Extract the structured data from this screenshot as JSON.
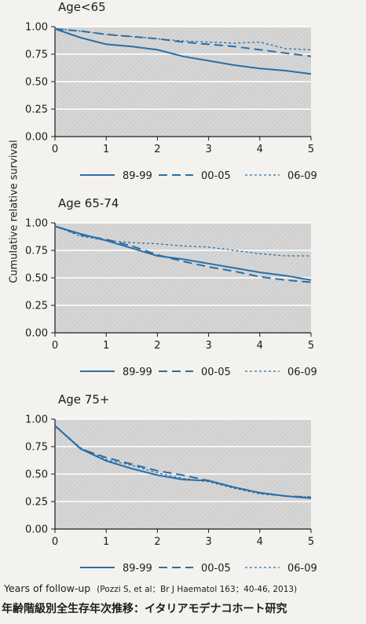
{
  "figure": {
    "ylabel": "Cumulative relative survival",
    "xlabel": "Years of follow-up",
    "citation": "(Pozzi S, et al：Br J Haematol 163：40-46, 2013)",
    "caption": "年齢階級別全生存年次推移：イタリアモデナコホート研究",
    "colors": {
      "line": "#2a6fa6",
      "plot_background": "#d6d6d6",
      "grid": "#ffffff"
    }
  },
  "chart_data": [
    {
      "type": "line",
      "title": "Age<65",
      "x": [
        0,
        0.5,
        1,
        1.5,
        2,
        2.5,
        3,
        3.5,
        4,
        4.5,
        5
      ],
      "xlim": [
        0,
        5
      ],
      "ylim": [
        0,
        1
      ],
      "xticks": [
        "0",
        "1",
        "2",
        "3",
        "4",
        "5"
      ],
      "yticks": [
        "0.00",
        "0.25",
        "0.50",
        "0.75",
        "1.00"
      ],
      "series": [
        {
          "name": "89-99",
          "style": "solid",
          "values": [
            0.98,
            0.9,
            0.84,
            0.82,
            0.79,
            0.73,
            0.69,
            0.65,
            0.62,
            0.6,
            0.57
          ]
        },
        {
          "name": "00-05",
          "style": "dashed",
          "values": [
            0.98,
            0.96,
            0.93,
            0.91,
            0.89,
            0.86,
            0.84,
            0.82,
            0.79,
            0.76,
            0.73
          ]
        },
        {
          "name": "06-09",
          "style": "dotted",
          "values": [
            0.98,
            0.96,
            0.93,
            0.91,
            0.89,
            0.87,
            0.86,
            0.85,
            0.86,
            0.8,
            0.79
          ]
        }
      ],
      "legend": {
        "position": "bottom",
        "labels": [
          "89-99",
          "00-05",
          "06-09"
        ]
      },
      "grid": true
    },
    {
      "type": "line",
      "title": "Age 65-74",
      "x": [
        0,
        0.5,
        1,
        1.5,
        2,
        2.5,
        3,
        3.5,
        4,
        4.5,
        5
      ],
      "xlim": [
        0,
        5
      ],
      "ylim": [
        0,
        1
      ],
      "xticks": [
        "0",
        "1",
        "2",
        "3",
        "4",
        "5"
      ],
      "yticks": [
        "0.00",
        "0.25",
        "0.50",
        "0.75",
        "1.00"
      ],
      "series": [
        {
          "name": "89-99",
          "style": "solid",
          "values": [
            0.97,
            0.9,
            0.84,
            0.77,
            0.7,
            0.67,
            0.63,
            0.59,
            0.55,
            0.52,
            0.48
          ]
        },
        {
          "name": "00-05",
          "style": "dashed",
          "values": [
            0.97,
            0.89,
            0.85,
            0.79,
            0.71,
            0.65,
            0.6,
            0.56,
            0.51,
            0.48,
            0.46
          ]
        },
        {
          "name": "06-09",
          "style": "dotted",
          "values": [
            0.97,
            0.88,
            0.84,
            0.82,
            0.81,
            0.79,
            0.78,
            0.75,
            0.72,
            0.7,
            0.7
          ]
        }
      ],
      "legend": {
        "position": "bottom",
        "labels": [
          "89-99",
          "00-05",
          "06-09"
        ]
      },
      "grid": true
    },
    {
      "type": "line",
      "title": "Age 75+",
      "x": [
        0,
        0.5,
        1,
        1.5,
        2,
        2.5,
        3,
        3.5,
        4,
        4.5,
        5
      ],
      "xlim": [
        0,
        5
      ],
      "ylim": [
        0,
        1
      ],
      "xticks": [
        "0",
        "1",
        "2",
        "3",
        "4",
        "5"
      ],
      "yticks": [
        "0.00",
        "0.25",
        "0.50",
        "0.75",
        "1.00"
      ],
      "series": [
        {
          "name": "89-99",
          "style": "solid",
          "values": [
            0.94,
            0.73,
            0.62,
            0.55,
            0.49,
            0.45,
            0.44,
            0.38,
            0.33,
            0.3,
            0.28
          ]
        },
        {
          "name": "00-05",
          "style": "dashed",
          "values": [
            0.94,
            0.73,
            0.65,
            0.59,
            0.53,
            0.49,
            0.44,
            0.38,
            0.33,
            0.3,
            0.29
          ]
        },
        {
          "name": "06-09",
          "style": "dotted",
          "values": [
            0.94,
            0.74,
            0.63,
            0.58,
            0.51,
            0.46,
            0.43,
            0.37,
            0.32,
            0.3,
            0.29
          ]
        }
      ],
      "legend": {
        "position": "bottom",
        "labels": [
          "89-99",
          "00-05",
          "06-09"
        ]
      },
      "grid": true
    }
  ]
}
